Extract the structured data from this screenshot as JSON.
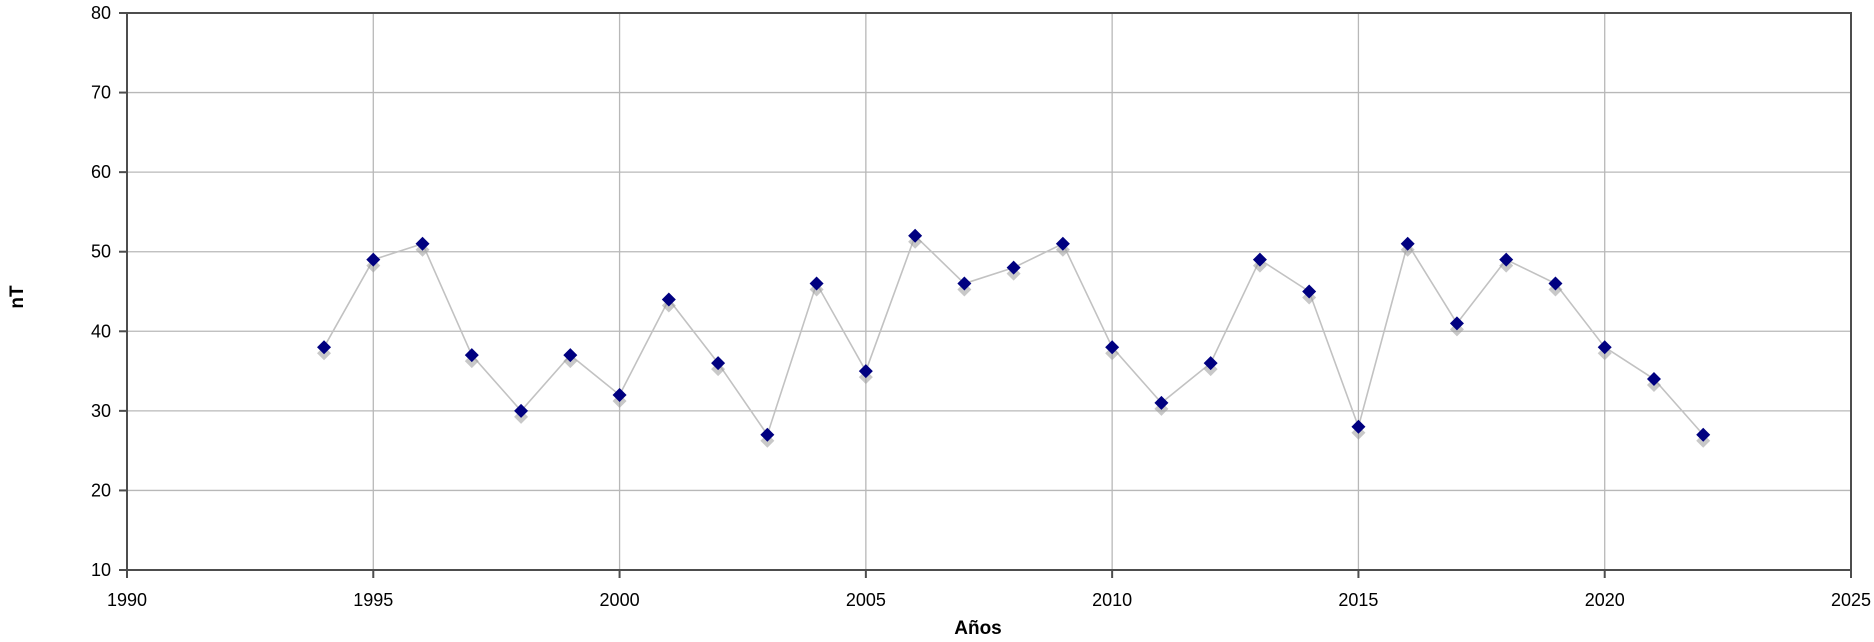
{
  "chart_data": {
    "type": "line",
    "xlabel": "Años",
    "ylabel": "nT",
    "xlim": [
      1990,
      2025
    ],
    "ylim": [
      10,
      80
    ],
    "x_ticks": [
      1990,
      1995,
      2000,
      2005,
      2010,
      2015,
      2020,
      2025
    ],
    "y_ticks": [
      10,
      20,
      30,
      40,
      50,
      60,
      70,
      80
    ],
    "grid": true,
    "legend": "none",
    "series": [
      {
        "color": "#000080",
        "line_color": "#c2c2c2",
        "marker": "diamond",
        "x": [
          1994,
          1995,
          1996,
          1997,
          1998,
          1999,
          2000,
          2001,
          2002,
          2003,
          2004,
          2005,
          2006,
          2007,
          2008,
          2009,
          2010,
          2011,
          2012,
          2013,
          2014,
          2015,
          2016,
          2017,
          2018,
          2019,
          2020,
          2021,
          2022
        ],
        "y": [
          38,
          49,
          51,
          37,
          30,
          37,
          32,
          44,
          36,
          27,
          46,
          35,
          52,
          46,
          48,
          51,
          38,
          31,
          36,
          49,
          45,
          28,
          51,
          41,
          49,
          46,
          38,
          34,
          27
        ]
      }
    ]
  }
}
